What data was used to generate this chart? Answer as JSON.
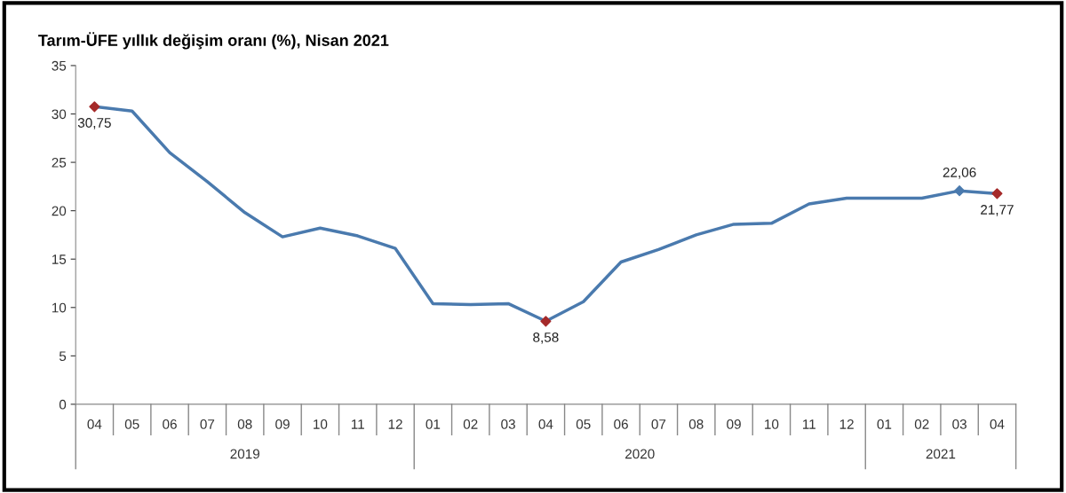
{
  "chart_data": {
    "type": "line",
    "title": "Tarım-ÜFE yıllık değişim oranı (%), Nisan 2021",
    "categories": [
      "04",
      "05",
      "06",
      "07",
      "08",
      "09",
      "10",
      "11",
      "12",
      "01",
      "02",
      "03",
      "04",
      "05",
      "06",
      "07",
      "08",
      "09",
      "10",
      "11",
      "12",
      "01",
      "02",
      "03",
      "04"
    ],
    "series": [
      {
        "color": "#4a7aae",
        "marker": "none",
        "values": [
          30.75,
          30.3,
          26.0,
          23.0,
          19.8,
          17.3,
          18.2,
          17.4,
          16.1,
          10.4,
          10.3,
          10.4,
          8.58,
          10.6,
          14.7,
          16.0,
          17.5,
          18.6,
          18.7,
          20.7,
          21.3,
          21.3,
          21.3,
          22.06,
          21.77
        ]
      },
      {
        "type": "scatter",
        "marker": "diamond",
        "color": "#a52a2a",
        "values": [
          30.75,
          null,
          null,
          null,
          null,
          null,
          null,
          null,
          null,
          null,
          null,
          null,
          8.58,
          null,
          null,
          null,
          null,
          null,
          null,
          null,
          null,
          null,
          null,
          null,
          21.77
        ],
        "value_labels": [
          "30,75",
          null,
          null,
          null,
          null,
          null,
          null,
          null,
          null,
          null,
          null,
          null,
          "8,58",
          null,
          null,
          null,
          null,
          null,
          null,
          null,
          null,
          null,
          null,
          null,
          "21,77"
        ]
      },
      {
        "type": "scatter",
        "marker": "diamond",
        "color": "#4a7aae",
        "values": [
          null,
          null,
          null,
          null,
          null,
          null,
          null,
          null,
          null,
          null,
          null,
          null,
          null,
          null,
          null,
          null,
          null,
          null,
          null,
          null,
          null,
          null,
          null,
          22.06,
          null
        ],
        "value_labels": [
          null,
          null,
          null,
          null,
          null,
          null,
          null,
          null,
          null,
          null,
          null,
          null,
          null,
          null,
          null,
          null,
          null,
          null,
          null,
          null,
          null,
          null,
          null,
          "22,06",
          null
        ]
      }
    ],
    "annotations": [
      "2019",
      "2020",
      "2021"
    ],
    "ylim": [
      0,
      35
    ],
    "yticks": [
      0,
      5,
      10,
      15,
      20,
      25,
      30,
      35
    ],
    "grid": false,
    "legend": false
  }
}
